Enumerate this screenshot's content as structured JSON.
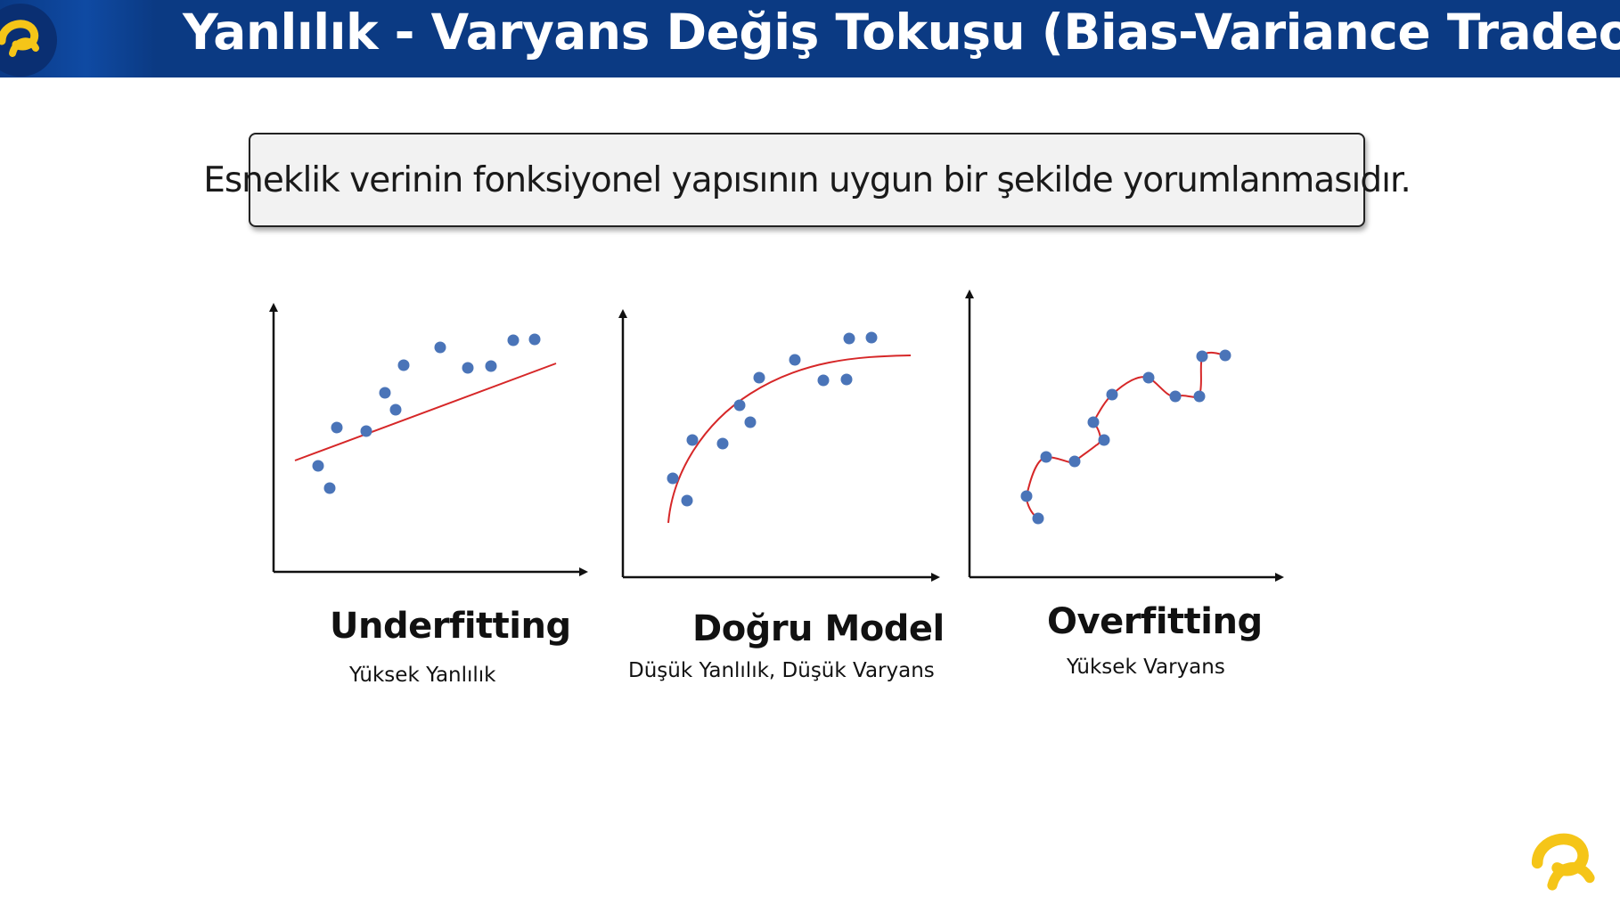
{
  "header": {
    "title": "Yanlılık - Varyans Değiş Tokuşu (Bias-Variance Tradeoff)"
  },
  "definition": {
    "text": "Esneklik verinin fonksiyonel yapısının uygun bir şekilde yorumlanmasıdır."
  },
  "panels": [
    {
      "title": "Underfitting",
      "subtitle": "Yüksek Yanlılık"
    },
    {
      "title": "Doğru Model",
      "subtitle": "Düşük Yanlılık, Düşük Varyans"
    },
    {
      "title": "Overfitting",
      "subtitle": "Yüksek Varyans"
    }
  ],
  "colors": {
    "header_bg": "#0b3a83",
    "point": "#4a74b8",
    "fit_line": "#d62728",
    "logo": "#f5c518"
  },
  "icons": {
    "header_logo": "turkcell-logo-icon",
    "corner_logo": "turkcell-logo-icon"
  }
}
